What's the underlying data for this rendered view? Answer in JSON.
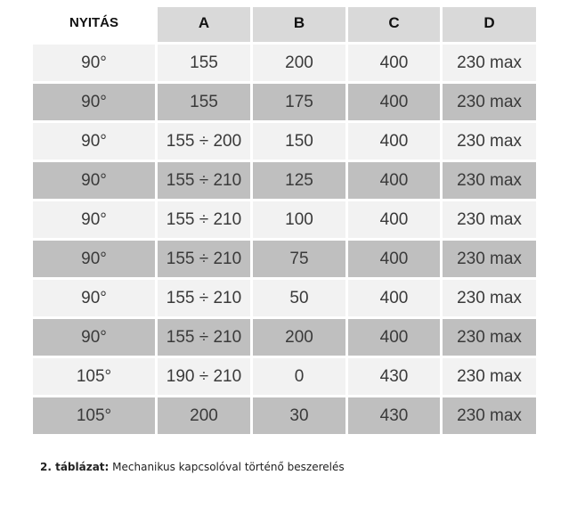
{
  "table": {
    "headers": [
      "NYITÁS",
      "A",
      "B",
      "C",
      "D"
    ],
    "rows": [
      [
        "90°",
        "155",
        "200",
        "400",
        "230 max"
      ],
      [
        "90°",
        "155",
        "175",
        "400",
        "230 max"
      ],
      [
        "90°",
        "155 ÷ 200",
        "150",
        "400",
        "230 max"
      ],
      [
        "90°",
        "155 ÷ 210",
        "125",
        "400",
        "230 max"
      ],
      [
        "90°",
        "155 ÷ 210",
        "100",
        "400",
        "230 max"
      ],
      [
        "90°",
        "155 ÷ 210",
        "75",
        "400",
        "230 max"
      ],
      [
        "90°",
        "155 ÷ 210",
        "50",
        "400",
        "230 max"
      ],
      [
        "90°",
        "155 ÷ 210",
        "200",
        "400",
        "230 max"
      ],
      [
        "105°",
        "190 ÷ 210",
        "0",
        "430",
        "230 max"
      ],
      [
        "105°",
        "200",
        "30",
        "430",
        "230 max"
      ]
    ]
  },
  "caption": {
    "label": "2. táblázat:",
    "text": " Mechanikus kapcsolóval történő beszerelés"
  }
}
